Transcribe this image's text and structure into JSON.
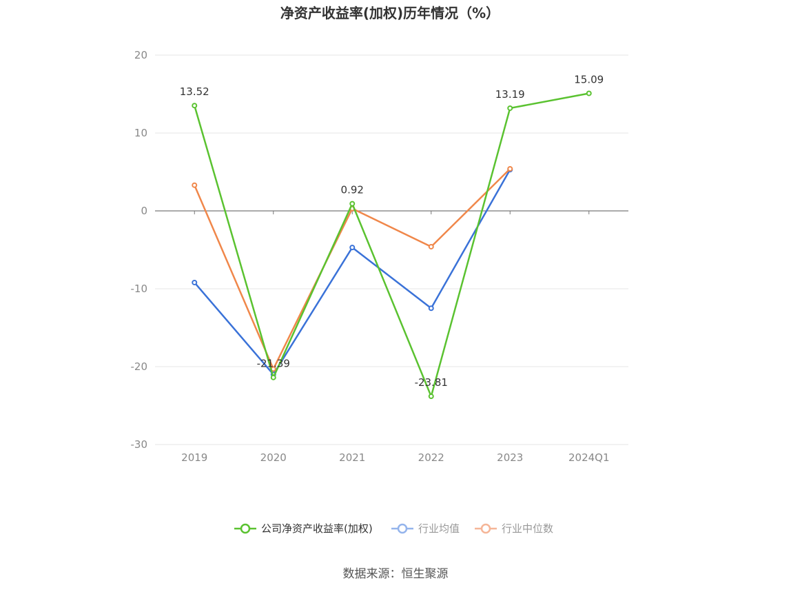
{
  "chart_data": {
    "type": "line",
    "title": "净资产收益率(加权)历年情况（%）",
    "categories": [
      "2019",
      "2020",
      "2021",
      "2022",
      "2023",
      "2024Q1"
    ],
    "ylim": [
      -30,
      20
    ],
    "yticks": [
      20,
      10,
      0,
      -10,
      -20,
      -30
    ],
    "grid": true,
    "legend_position": "bottom",
    "series": [
      {
        "name": "公司净资产收益率(加权)",
        "color": "#5ac230",
        "values": [
          13.52,
          -21.39,
          0.92,
          -23.81,
          13.19,
          15.09
        ],
        "labels": [
          "13.52",
          "-21.39",
          "0.92",
          "-23.81",
          "13.19",
          "15.09"
        ]
      },
      {
        "name": "行业均值",
        "color": "#3a72d8",
        "legend_color": "#94b4ec",
        "values": [
          -9.2,
          -21.0,
          -4.7,
          -12.5,
          5.3,
          null
        ]
      },
      {
        "name": "行业中位数",
        "color": "#f0874a",
        "legend_color": "#f5b597",
        "values": [
          3.3,
          -20.3,
          0.3,
          -4.6,
          5.4,
          null
        ]
      }
    ]
  },
  "source": "数据来源：恒生聚源"
}
